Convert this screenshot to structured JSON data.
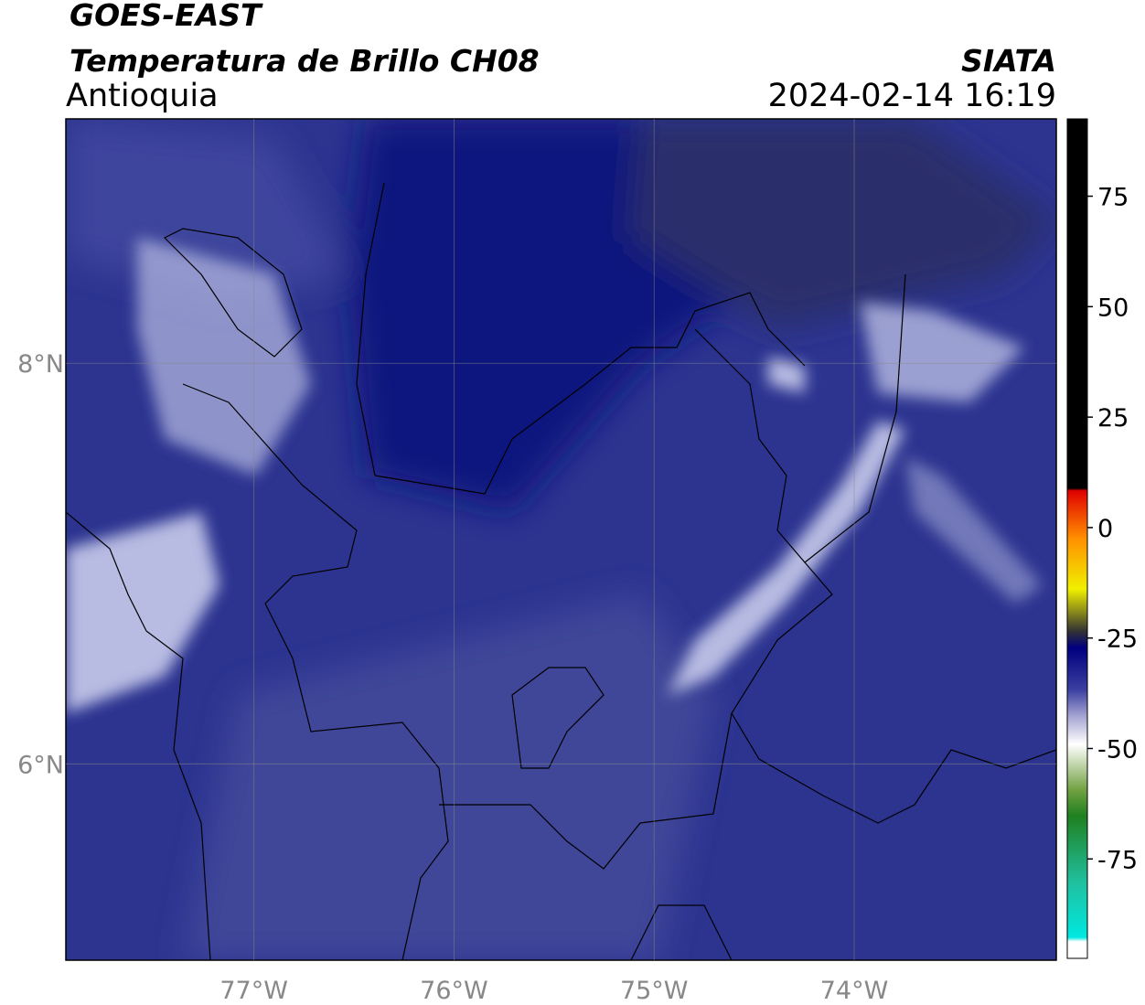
{
  "header": {
    "title": "GOES-EAST",
    "subtitle": "Temperatura de Brillo CH08",
    "region": "Antioquia",
    "agency": "SIATA",
    "datetime": "2024-02-14 16:19"
  },
  "map": {
    "xlim": [
      -77.94,
      -72.99
    ],
    "ylim": [
      5.02,
      9.22
    ],
    "lon_ticks": [
      {
        "value": -77,
        "label": "77°W"
      },
      {
        "value": -76,
        "label": "76°W"
      },
      {
        "value": -75,
        "label": "75°W"
      },
      {
        "value": -74,
        "label": "74°W"
      }
    ],
    "lat_ticks": [
      {
        "value": 8,
        "label": "8°N"
      },
      {
        "value": 6,
        "label": "6°N"
      }
    ],
    "grid": true
  },
  "colorbar": {
    "clim": [
      -97.5,
      92.5
    ],
    "ticks": [
      75,
      50,
      25,
      0,
      -25,
      -50,
      -75
    ]
  }
}
